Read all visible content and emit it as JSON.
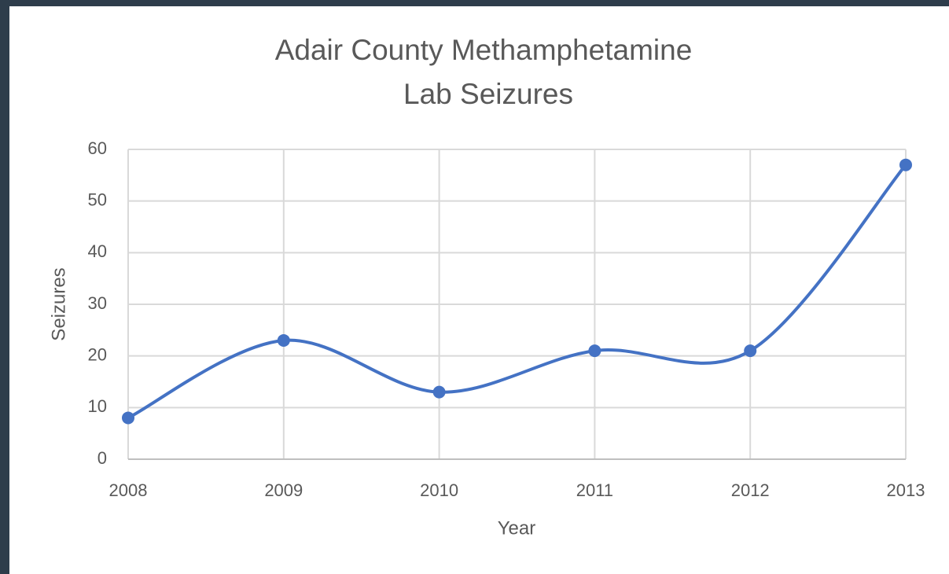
{
  "chart_data": {
    "type": "line",
    "title": [
      "Adair County Methamphetamine",
      "Lab Seizures"
    ],
    "x_label": "Year",
    "y_label": "Seizures",
    "categories": [
      "2008",
      "2009",
      "2010",
      "2011",
      "2012",
      "2013"
    ],
    "series": [
      {
        "name": "Seizures",
        "color": "#4472c4",
        "values": [
          8,
          23,
          13,
          21,
          21,
          57
        ]
      }
    ],
    "ylim": [
      0,
      60
    ],
    "yticks": [
      0,
      10,
      20,
      30,
      40,
      50,
      60
    ],
    "grid": true,
    "smooth": true
  }
}
